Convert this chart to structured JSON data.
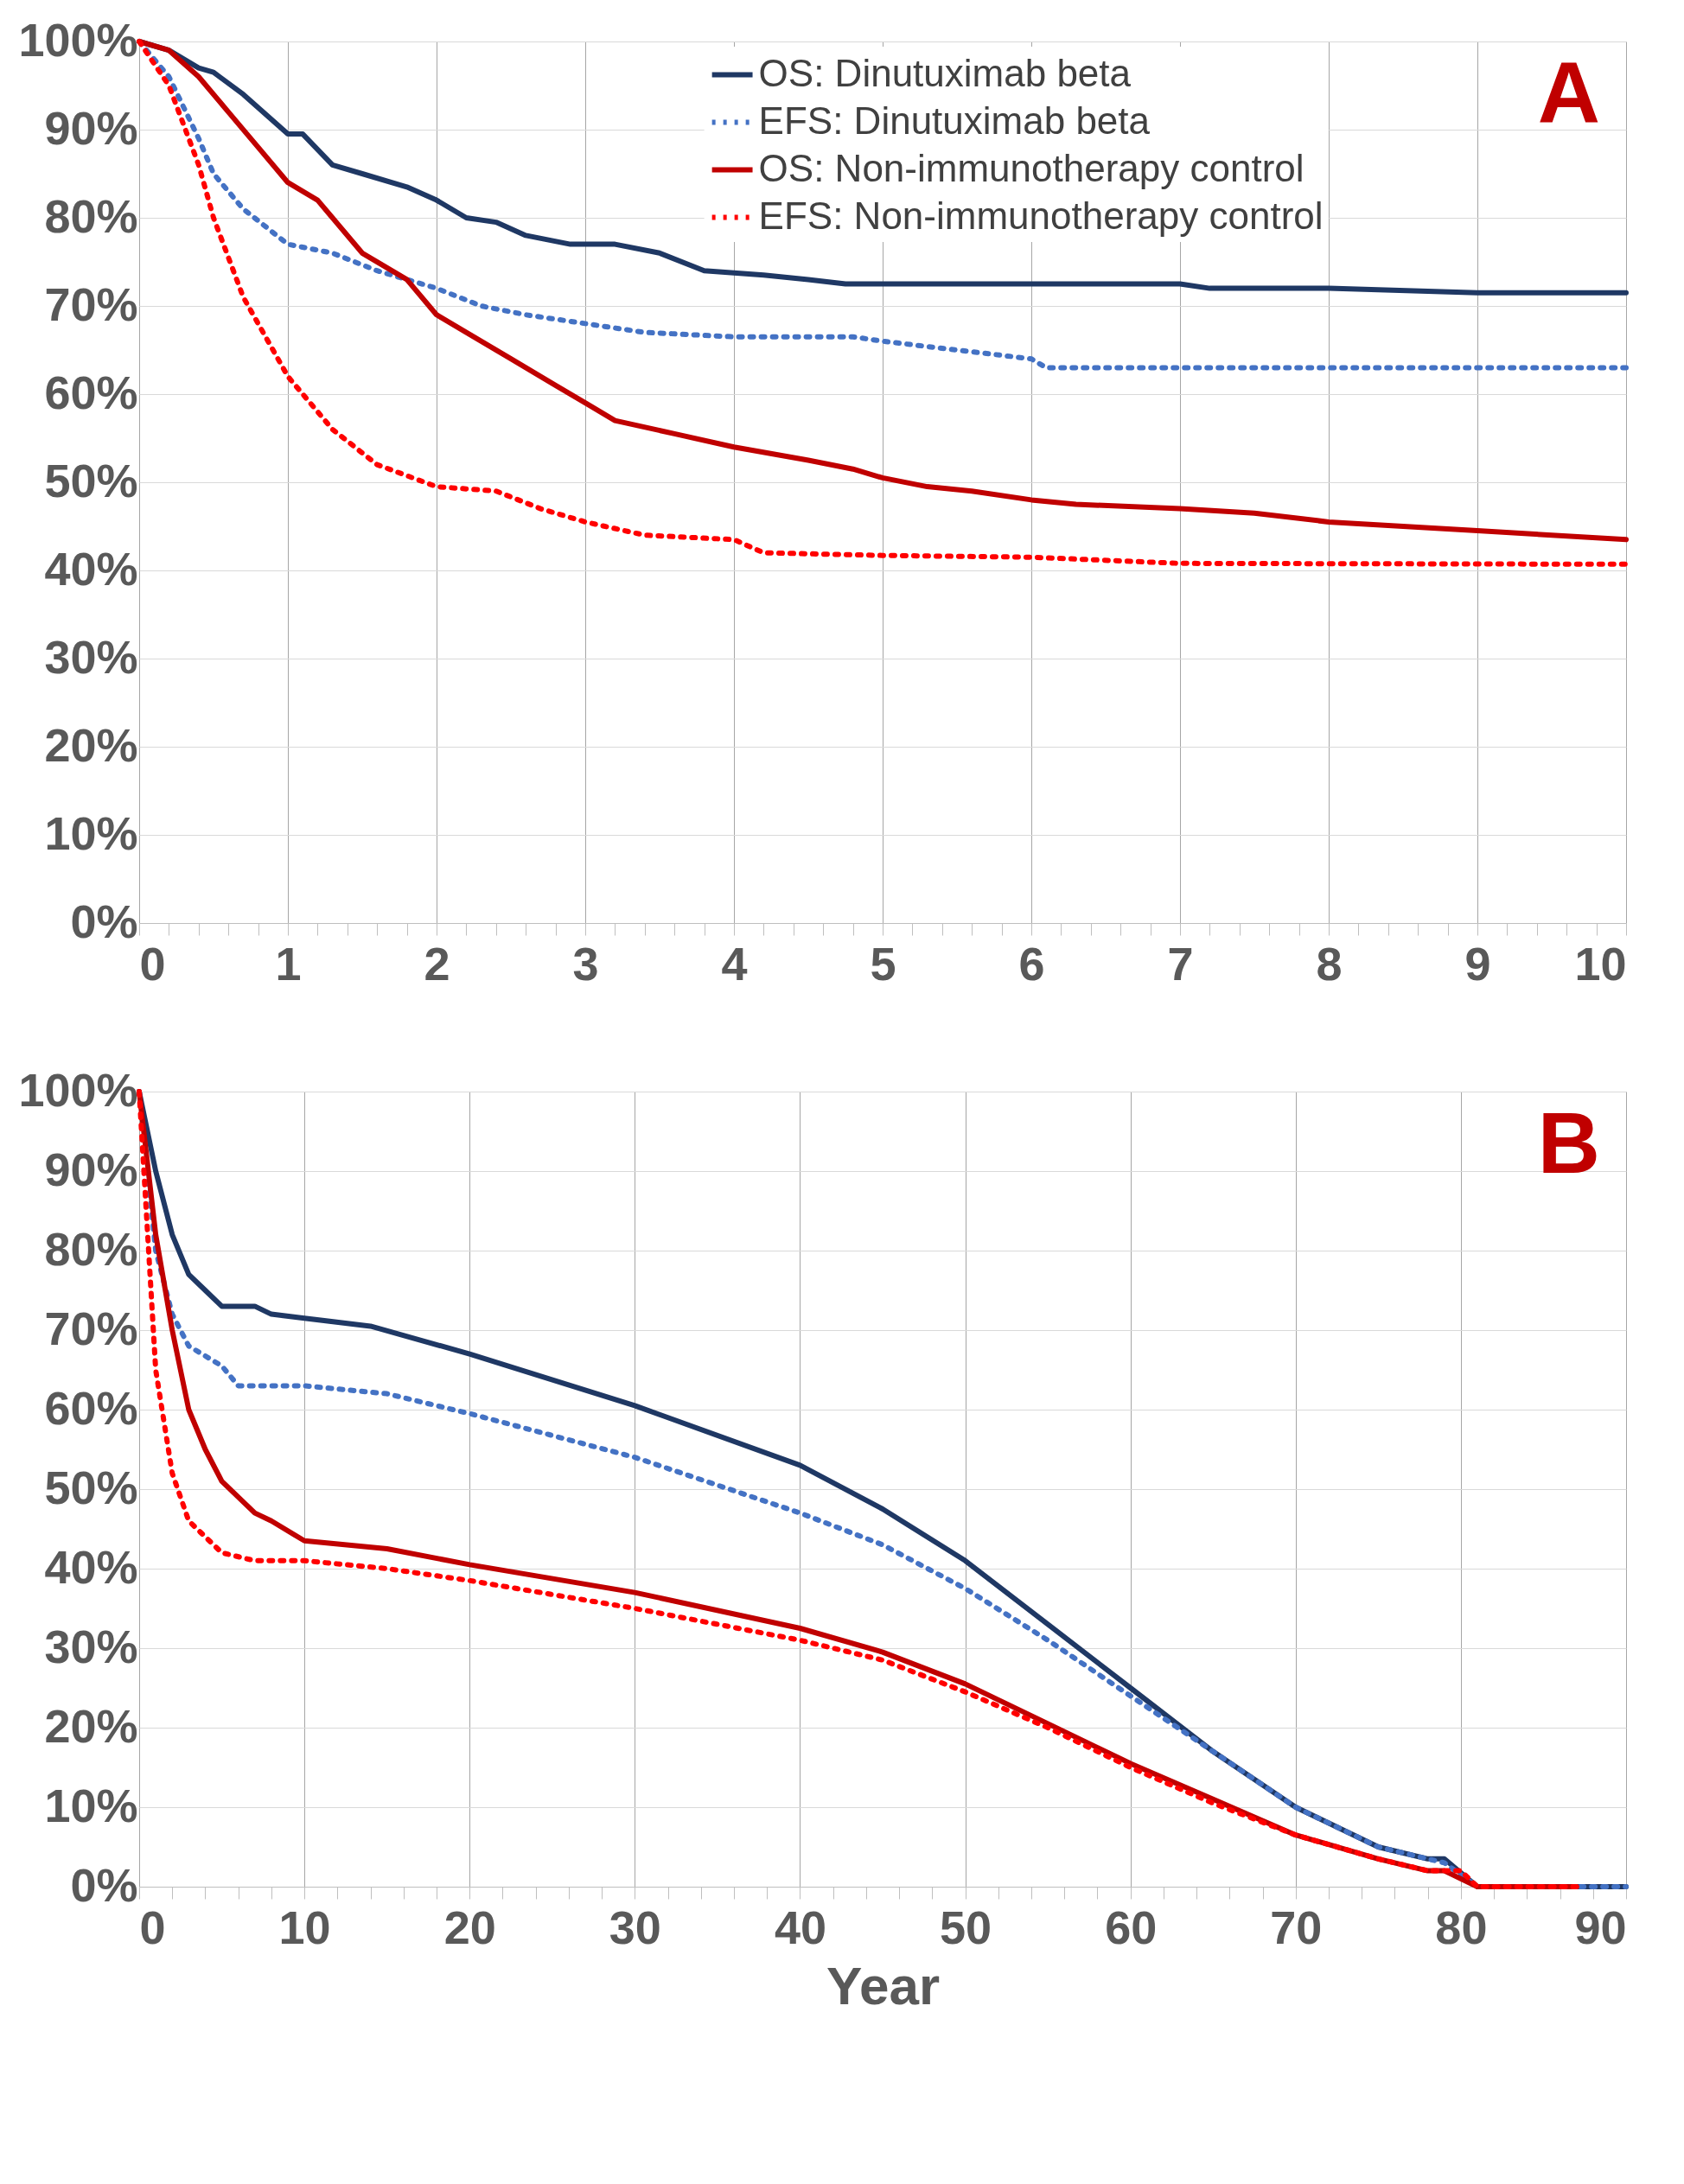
{
  "chart_data": [
    {
      "type": "line",
      "annotations": [
        "A"
      ],
      "legend": "top right",
      "grid": true,
      "xlim": [
        0,
        10
      ],
      "xticks": [
        0,
        {
          "value": 0.2,
          "label": null
        },
        {
          "value": 0.4,
          "label": null
        },
        {
          "value": 0.6,
          "label": null
        },
        {
          "value": 0.8,
          "label": null
        },
        1,
        {
          "value": 1.2,
          "label": null
        },
        {
          "value": 1.4,
          "label": null
        },
        {
          "value": 1.6,
          "label": null
        },
        {
          "value": 1.8,
          "label": null
        },
        2,
        {
          "value": 2.2,
          "label": null
        },
        {
          "value": 2.4,
          "label": null
        },
        {
          "value": 2.6,
          "label": null
        },
        {
          "value": 2.8,
          "label": null
        },
        3,
        {
          "value": 3.2,
          "label": null
        },
        {
          "value": 3.4,
          "label": null
        },
        {
          "value": 3.6,
          "label": null
        },
        {
          "value": 3.8,
          "label": null
        },
        4,
        {
          "value": 4.2,
          "label": null
        },
        {
          "value": 4.4,
          "label": null
        },
        {
          "value": 4.6,
          "label": null
        },
        {
          "value": 4.8,
          "label": null
        },
        5,
        {
          "value": 5.2,
          "label": null
        },
        {
          "value": 5.4,
          "label": null
        },
        {
          "value": 5.6,
          "label": null
        },
        {
          "value": 5.8,
          "label": null
        },
        6,
        {
          "value": 6.2,
          "label": null
        },
        {
          "value": 6.4,
          "label": null
        },
        {
          "value": 6.6,
          "label": null
        },
        {
          "value": 6.8,
          "label": null
        },
        7,
        {
          "value": 7.2,
          "label": null
        },
        {
          "value": 7.4,
          "label": null
        },
        {
          "value": 7.6,
          "label": null
        },
        {
          "value": 7.8,
          "label": null
        },
        8,
        {
          "value": 8.2,
          "label": null
        },
        {
          "value": 8.4,
          "label": null
        },
        {
          "value": 8.6,
          "label": null
        },
        {
          "value": 8.8,
          "label": null
        },
        9,
        {
          "value": 9.2,
          "label": null
        },
        {
          "value": 9.4,
          "label": null
        },
        {
          "value": 9.6,
          "label": null
        },
        {
          "value": 9.8,
          "label": null
        },
        10
      ],
      "ylim": [
        0,
        100
      ],
      "yticks": [
        {
          "value": 0,
          "label": "0%"
        },
        {
          "value": 10,
          "label": "10%"
        },
        {
          "value": 20,
          "label": "20%"
        },
        {
          "value": 30,
          "label": "30%"
        },
        {
          "value": 40,
          "label": "40%"
        },
        {
          "value": 50,
          "label": "50%"
        },
        {
          "value": 60,
          "label": "60%"
        },
        {
          "value": 70,
          "label": "70%"
        },
        {
          "value": 80,
          "label": "80%"
        },
        {
          "value": 90,
          "label": "90%"
        },
        {
          "value": 100,
          "label": "100%"
        }
      ],
      "series": [
        {
          "name": "OS: Dinutuximab beta",
          "color": "#1f3864",
          "line_style": "solid",
          "x": [
            0,
            0.2,
            0.4,
            0.5,
            0.7,
            0.9,
            1.0,
            1.1,
            1.3,
            1.5,
            1.8,
            2.0,
            2.2,
            2.4,
            2.6,
            2.9,
            3.2,
            3.5,
            3.8,
            4.2,
            4.5,
            4.75,
            5,
            7,
            7.2,
            8,
            9,
            10
          ],
          "values": [
            100,
            99,
            97,
            96.5,
            94,
            91,
            89.5,
            89.5,
            86,
            85,
            83.5,
            82,
            80,
            79.5,
            78,
            77,
            77,
            76,
            74,
            73.5,
            73,
            72.5,
            72.5,
            72.5,
            72,
            72,
            71.5,
            71.5
          ]
        },
        {
          "name": "EFS: Dinutuximab beta",
          "color": "#4472c4",
          "line_style": "dotted",
          "x": [
            0,
            0.2,
            0.4,
            0.5,
            0.7,
            1.0,
            1.3,
            1.6,
            2.0,
            2.3,
            2.6,
            3.0,
            3.4,
            4.0,
            4.8,
            5.0,
            5.5,
            6.0,
            6.1,
            10
          ],
          "values": [
            100,
            96,
            89,
            85,
            81,
            77,
            76,
            74,
            72,
            70,
            69,
            68,
            67,
            66.5,
            66.5,
            66,
            65,
            64,
            63,
            63
          ]
        },
        {
          "name": "OS: Non-immunotherapy control",
          "color": "#c00000",
          "line_style": "solid",
          "x": [
            0,
            0.2,
            0.4,
            0.6,
            0.8,
            1.0,
            1.2,
            1.3,
            1.5,
            1.8,
            2.0,
            2.2,
            2.5,
            2.8,
            3.0,
            3.2,
            3.6,
            4.0,
            4.5,
            4.8,
            5.0,
            5.3,
            5.6,
            6.0,
            6.3,
            7.0,
            7.5,
            8.0,
            9.0,
            10
          ],
          "values": [
            100,
            99,
            96,
            92,
            88,
            84,
            82,
            80,
            76,
            73,
            69,
            67,
            64,
            61,
            59,
            57,
            55.5,
            54,
            52.5,
            51.5,
            50.5,
            49.5,
            49,
            48,
            47.5,
            47,
            46.5,
            45.5,
            44.5,
            43.5
          ]
        },
        {
          "name": "EFS: Non-immunotherapy control",
          "color": "#ff0000",
          "line_style": "dotted",
          "x": [
            0,
            0.2,
            0.4,
            0.5,
            0.7,
            1.0,
            1.3,
            1.6,
            2.0,
            2.4,
            2.7,
            3.0,
            3.4,
            4.0,
            4.2,
            5.0,
            6.0,
            7,
            10
          ],
          "values": [
            100,
            95,
            86,
            80,
            71,
            62,
            56,
            52,
            49.5,
            49,
            47,
            45.5,
            44,
            43.5,
            42,
            41.7,
            41.5,
            40.8,
            40.7
          ]
        }
      ]
    },
    {
      "type": "line",
      "annotations": [
        "B"
      ],
      "legend": "top right",
      "grid": true,
      "xlabel": "Year",
      "xlim": [
        0,
        90
      ],
      "xticks": [
        0,
        {
          "value": 2,
          "label": null
        },
        {
          "value": 4,
          "label": null
        },
        {
          "value": 6,
          "label": null
        },
        {
          "value": 8,
          "label": null
        },
        10,
        {
          "value": 12,
          "label": null
        },
        {
          "value": 14,
          "label": null
        },
        {
          "value": 16,
          "label": null
        },
        {
          "value": 18,
          "label": null
        },
        20,
        {
          "value": 22,
          "label": null
        },
        {
          "value": 24,
          "label": null
        },
        {
          "value": 26,
          "label": null
        },
        {
          "value": 28,
          "label": null
        },
        30,
        {
          "value": 32,
          "label": null
        },
        {
          "value": 34,
          "label": null
        },
        {
          "value": 36,
          "label": null
        },
        {
          "value": 38,
          "label": null
        },
        40,
        {
          "value": 42,
          "label": null
        },
        {
          "value": 44,
          "label": null
        },
        {
          "value": 46,
          "label": null
        },
        {
          "value": 48,
          "label": null
        },
        50,
        {
          "value": 52,
          "label": null
        },
        {
          "value": 54,
          "label": null
        },
        {
          "value": 56,
          "label": null
        },
        {
          "value": 58,
          "label": null
        },
        60,
        {
          "value": 62,
          "label": null
        },
        {
          "value": 64,
          "label": null
        },
        {
          "value": 66,
          "label": null
        },
        {
          "value": 68,
          "label": null
        },
        70,
        {
          "value": 72,
          "label": null
        },
        {
          "value": 74,
          "label": null
        },
        {
          "value": 76,
          "label": null
        },
        {
          "value": 78,
          "label": null
        },
        80,
        {
          "value": 82,
          "label": null
        },
        {
          "value": 84,
          "label": null
        },
        {
          "value": 86,
          "label": null
        },
        {
          "value": 88,
          "label": null
        },
        90
      ],
      "ylim": [
        0,
        100
      ],
      "yticks": [
        {
          "value": 0,
          "label": "0%"
        },
        {
          "value": 10,
          "label": "10%"
        },
        {
          "value": 20,
          "label": "20%"
        },
        {
          "value": 30,
          "label": "30%"
        },
        {
          "value": 40,
          "label": "40%"
        },
        {
          "value": 50,
          "label": "50%"
        },
        {
          "value": 60,
          "label": "60%"
        },
        {
          "value": 70,
          "label": "70%"
        },
        {
          "value": 80,
          "label": "80%"
        },
        {
          "value": 90,
          "label": "90%"
        },
        {
          "value": 100,
          "label": "100%"
        }
      ],
      "series": [
        {
          "name": "OS: Dinutuximab beta",
          "color": "#1f3864",
          "line_style": "solid",
          "x": [
            0,
            1,
            2,
            3,
            4,
            5,
            7,
            8,
            10,
            14,
            20,
            30,
            40,
            45,
            50,
            55,
            60,
            65,
            70,
            75,
            78,
            79,
            81,
            90
          ],
          "values": [
            100,
            90,
            82,
            77,
            75,
            73,
            73,
            72,
            71.5,
            70.5,
            67,
            60.5,
            53,
            47.5,
            41,
            33,
            25,
            17,
            10,
            5,
            3.5,
            3.5,
            0,
            0
          ]
        },
        {
          "name": "EFS: Dinutuximab beta",
          "color": "#4472c4",
          "line_style": "dotted",
          "x": [
            0,
            1,
            2,
            3,
            5,
            6,
            10,
            15,
            20,
            30,
            40,
            45,
            50,
            55,
            60,
            65,
            70,
            75,
            79,
            81,
            90
          ],
          "values": [
            100,
            80,
            72,
            68,
            65.5,
            63,
            63,
            62,
            59.5,
            54,
            47,
            43,
            37.5,
            31,
            24,
            17,
            10,
            5,
            3,
            0,
            0
          ]
        },
        {
          "name": "OS: Non-immunotherapy control",
          "color": "#c00000",
          "line_style": "solid",
          "x": [
            0,
            1,
            2,
            3,
            4,
            5,
            7,
            8,
            10,
            15,
            20,
            30,
            40,
            45,
            50,
            55,
            60,
            65,
            70,
            75,
            78,
            79,
            81,
            87
          ],
          "values": [
            100,
            82,
            70,
            60,
            55,
            51,
            47,
            46,
            43.5,
            42.5,
            40.5,
            37,
            32.5,
            29.5,
            25.5,
            20.5,
            15.5,
            11,
            6.5,
            3.5,
            2,
            2,
            0,
            0
          ]
        },
        {
          "name": "EFS: Non-immunotherapy control",
          "color": "#ff0000",
          "line_style": "dotted",
          "x": [
            0,
            1,
            2,
            3,
            5,
            7,
            10,
            15,
            20,
            30,
            40,
            45,
            50,
            55,
            60,
            65,
            70,
            75,
            78,
            80,
            81,
            87
          ],
          "values": [
            100,
            65,
            52,
            46,
            42,
            41,
            41,
            40,
            38.5,
            35,
            31,
            28.5,
            24.5,
            20,
            15,
            10.5,
            6.5,
            3.5,
            2,
            2,
            0,
            0
          ]
        }
      ]
    }
  ]
}
